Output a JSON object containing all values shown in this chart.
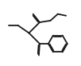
{
  "bg_color": "#ffffff",
  "line_color": "#1a1a1a",
  "line_width": 1.3,
  "dbo": 0.012,
  "figsize": [
    1.02,
    0.83
  ],
  "dpi": 100
}
